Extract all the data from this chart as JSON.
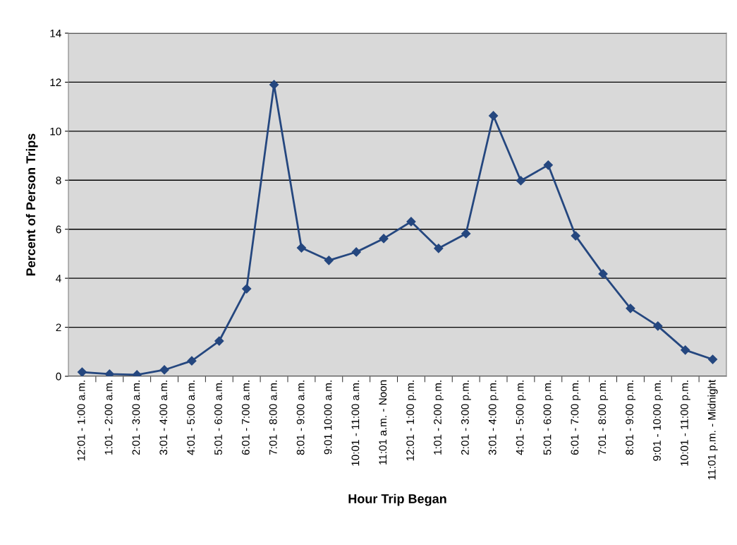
{
  "chart_data": {
    "type": "line",
    "xlabel": "Hour Trip Began",
    "ylabel": "Percent of Person Trips",
    "categories": [
      "12:01 - 1:00 a.m.",
      "1:01 - 2:00 a.m.",
      "2:01 - 3:00 a.m.",
      "3:01 - 4:00 a.m.",
      "4:01 - 5:00 a.m.",
      "5:01 - 6:00 a.m.",
      "6:01 - 7:00 a.m.",
      "7:01 - 8:00 a.m.",
      "8:01 - 9:00 a.m.",
      "9:01 10:00 a.m.",
      "10:01 - 11:00 a.m.",
      "11:01 a.m. - Noon",
      "12:01 - 1:00 p.m.",
      "1:01 - 2:00 p.m.",
      "2:01 - 3:00 p.m.",
      "3:01 - 4:00 p.m.",
      "4:01 - 5:00 p.m.",
      "5:01 - 6:00 p.m.",
      "6:01 - 7:00 p.m.",
      "7:01 - 8:00 p.m.",
      "8:01 - 9:00 p.m.",
      "9:01 - 10:00 p.m.",
      "10:01 - 11:00 p.m.",
      "11:01 p.m. - Midnight"
    ],
    "series": [
      {
        "color": "#25477f",
        "values": [
          0.17,
          0.09,
          0.06,
          0.26,
          0.63,
          1.44,
          3.57,
          11.9,
          5.24,
          4.73,
          5.07,
          5.62,
          6.31,
          5.22,
          5.82,
          10.63,
          7.98,
          8.62,
          5.73,
          4.18,
          2.77,
          2.05,
          1.07,
          0.69
        ]
      }
    ],
    "ylim": [
      0,
      14
    ],
    "yticks": [
      0,
      2,
      4,
      6,
      8,
      10,
      12,
      14
    ],
    "grid": "y",
    "marker": "diamond",
    "line_style": "solid",
    "legend": false
  }
}
